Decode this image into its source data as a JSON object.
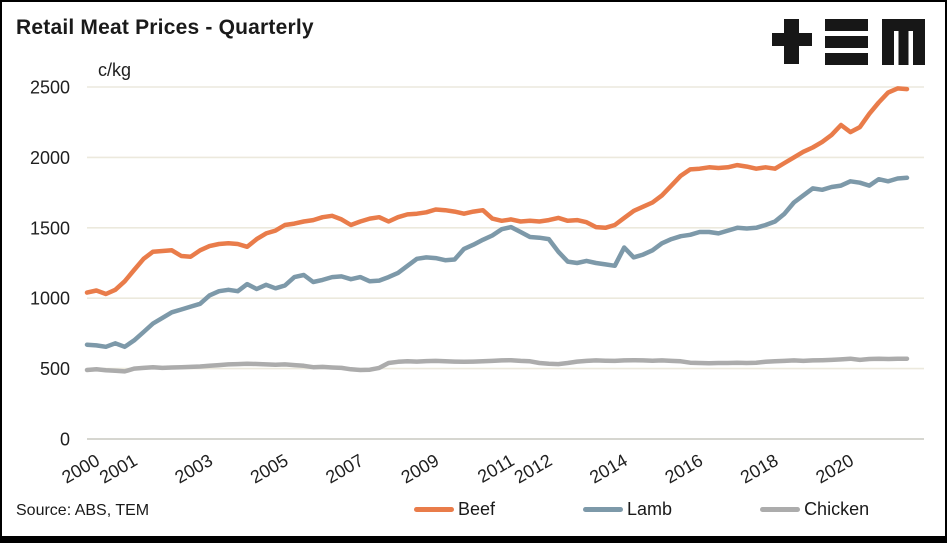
{
  "header": {
    "title": "Retail Meat Prices - Quarterly",
    "logo_name": "TEM"
  },
  "footer": {
    "source": "Source: ABS, TEM"
  },
  "colors": {
    "background": "#FFFFFF",
    "border": "#000000",
    "text": "#1A1A1A",
    "gridline": "#ECE9DD",
    "zero_line": "#C9C8C0",
    "beef": "#E97C4A",
    "lamb": "#7D99A9",
    "chicken": "#ACACAC"
  },
  "chart_data": {
    "type": "line",
    "title": "Retail Meat Prices - Quarterly",
    "ylabel": "c/kg",
    "xlabel": "",
    "ylim": [
      0,
      2500
    ],
    "y_ticks": [
      0,
      500,
      1000,
      1500,
      2000,
      2500
    ],
    "grid": "horizontal",
    "legend_position": "bottom",
    "x_frequency": "quarterly",
    "x_range": [
      "2000 Q1",
      "2021 Q4"
    ],
    "x_tick_labels": [
      {
        "label": "2000",
        "quarter_index": 0
      },
      {
        "label": "2001",
        "quarter_index": 4
      },
      {
        "label": "2003",
        "quarter_index": 12
      },
      {
        "label": "2005",
        "quarter_index": 20
      },
      {
        "label": "2007",
        "quarter_index": 28
      },
      {
        "label": "2009",
        "quarter_index": 36
      },
      {
        "label": "2011",
        "quarter_index": 44
      },
      {
        "label": "2012",
        "quarter_index": 48
      },
      {
        "label": "2014",
        "quarter_index": 56
      },
      {
        "label": "2016",
        "quarter_index": 64
      },
      {
        "label": "2018",
        "quarter_index": 72
      },
      {
        "label": "2020",
        "quarter_index": 80
      }
    ],
    "series": [
      {
        "name": "Beef",
        "color": "#E97C4A",
        "values": [
          1040,
          1055,
          1030,
          1060,
          1120,
          1200,
          1280,
          1330,
          1335,
          1340,
          1300,
          1295,
          1340,
          1370,
          1385,
          1390,
          1385,
          1365,
          1420,
          1460,
          1480,
          1520,
          1530,
          1545,
          1555,
          1575,
          1585,
          1560,
          1520,
          1545,
          1565,
          1575,
          1545,
          1575,
          1595,
          1600,
          1610,
          1630,
          1625,
          1615,
          1600,
          1615,
          1625,
          1565,
          1550,
          1560,
          1545,
          1550,
          1545,
          1555,
          1570,
          1550,
          1555,
          1540,
          1505,
          1500,
          1520,
          1570,
          1620,
          1650,
          1680,
          1730,
          1800,
          1870,
          1915,
          1920,
          1930,
          1925,
          1930,
          1945,
          1935,
          1920,
          1930,
          1920,
          1960,
          2000,
          2040,
          2070,
          2110,
          2160,
          2230,
          2180,
          2215,
          2310,
          2390,
          2460,
          2490,
          2485
        ]
      },
      {
        "name": "Lamb",
        "color": "#7D99A9",
        "values": [
          670,
          665,
          655,
          680,
          655,
          700,
          760,
          820,
          860,
          900,
          920,
          940,
          960,
          1020,
          1050,
          1060,
          1050,
          1100,
          1065,
          1095,
          1070,
          1090,
          1150,
          1165,
          1115,
          1130,
          1150,
          1155,
          1135,
          1150,
          1120,
          1125,
          1150,
          1180,
          1230,
          1280,
          1290,
          1285,
          1270,
          1275,
          1350,
          1380,
          1415,
          1445,
          1490,
          1505,
          1470,
          1435,
          1430,
          1420,
          1330,
          1260,
          1250,
          1265,
          1250,
          1240,
          1230,
          1360,
          1290,
          1310,
          1340,
          1390,
          1420,
          1440,
          1450,
          1470,
          1470,
          1460,
          1480,
          1500,
          1495,
          1500,
          1520,
          1545,
          1600,
          1680,
          1730,
          1780,
          1770,
          1790,
          1800,
          1830,
          1820,
          1800,
          1845,
          1830,
          1850,
          1855
        ]
      },
      {
        "name": "Chicken",
        "color": "#ACACAC",
        "values": [
          490,
          495,
          488,
          485,
          480,
          500,
          505,
          510,
          505,
          508,
          510,
          512,
          515,
          520,
          525,
          530,
          532,
          535,
          533,
          530,
          528,
          530,
          525,
          520,
          510,
          512,
          508,
          505,
          495,
          490,
          492,
          505,
          540,
          548,
          552,
          550,
          553,
          555,
          552,
          550,
          548,
          550,
          552,
          555,
          558,
          560,
          555,
          552,
          540,
          535,
          532,
          540,
          550,
          555,
          558,
          556,
          555,
          558,
          560,
          558,
          556,
          558,
          555,
          552,
          542,
          540,
          538,
          540,
          540,
          542,
          540,
          542,
          548,
          552,
          555,
          558,
          555,
          558,
          560,
          562,
          565,
          570,
          562,
          568,
          570,
          568,
          570,
          570
        ]
      }
    ]
  }
}
